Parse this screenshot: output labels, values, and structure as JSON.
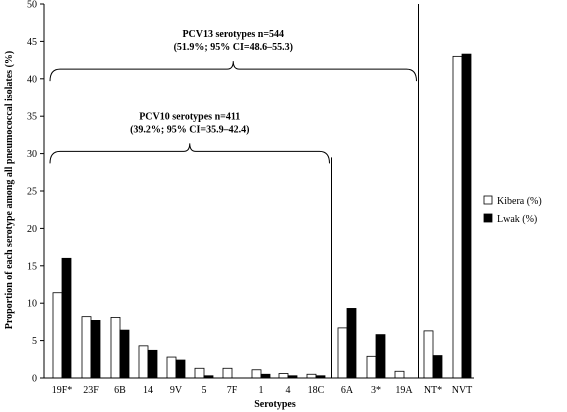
{
  "chart_data": {
    "type": "bar",
    "xlabel": "Serotypes",
    "ylabel": "Proportion of each serotype among all pneumococcal isolates (%)",
    "ylim": [
      0,
      50
    ],
    "yticks": [
      0,
      5,
      10,
      15,
      20,
      25,
      30,
      35,
      40,
      45,
      50
    ],
    "grid": false,
    "legend_position": "right",
    "categories": [
      "19F*",
      "23F",
      "6B",
      "14",
      "9V",
      "5",
      "7F",
      "1",
      "4",
      "18C",
      "6A",
      "3*",
      "19A",
      "NT*",
      "NVT"
    ],
    "series": [
      {
        "name": "Kibera (%)",
        "color": "#ffffff",
        "values": [
          11.4,
          8.2,
          8.1,
          4.3,
          2.8,
          1.3,
          1.3,
          1.1,
          0.6,
          0.5,
          6.7,
          2.9,
          0.9,
          6.3,
          43.0
        ]
      },
      {
        "name": "Lwak (%)",
        "color": "#000000",
        "values": [
          16.0,
          7.7,
          6.4,
          3.7,
          2.4,
          0.3,
          0.0,
          0.5,
          0.3,
          0.3,
          9.3,
          5.8,
          0.0,
          3.0,
          43.3
        ]
      }
    ],
    "annotations": [
      {
        "line1": "PCV13 serotypes n=544",
        "line2": "(51.9%; 95% CI=48.6–55.3)",
        "from_category": "19F*",
        "to_category": "19A",
        "y": 41.3
      },
      {
        "line1": "PCV10 serotypes n=411",
        "line2": "(39.2%; 95% CI=35.9–42.4)",
        "from_category": "19F*",
        "to_category": "18C",
        "y": 30.3
      }
    ],
    "separators_after": [
      "18C",
      "19A"
    ]
  }
}
